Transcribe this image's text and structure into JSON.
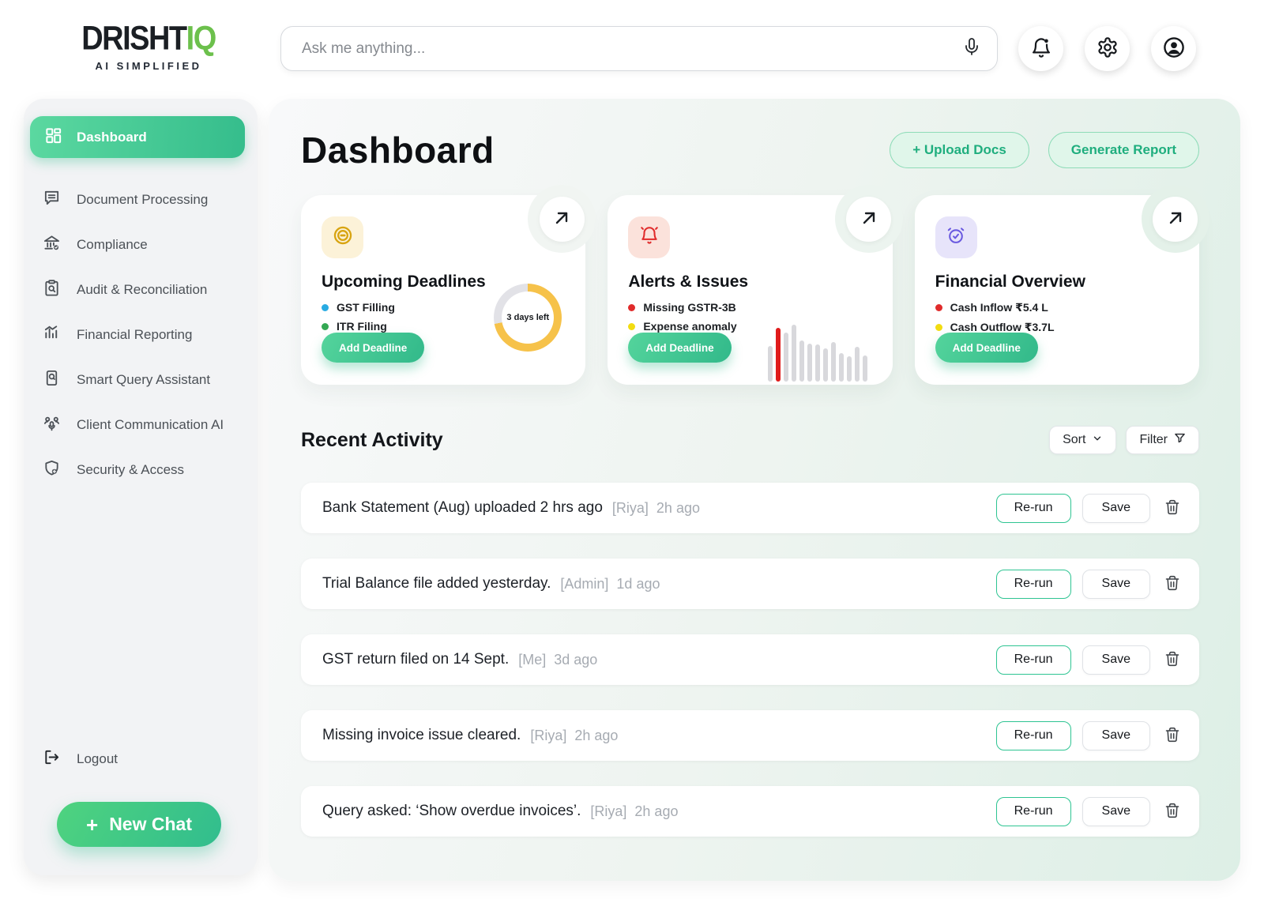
{
  "brand": {
    "name_primary": "DRISHT",
    "name_accent": "IQ",
    "tagline": "AI Simplified"
  },
  "topbar": {
    "search_placeholder": "Ask me anything..."
  },
  "sidebar": {
    "items": [
      {
        "label": "Dashboard",
        "active": true
      },
      {
        "label": "Document Processing"
      },
      {
        "label": "Compliance"
      },
      {
        "label": "Audit & Reconciliation"
      },
      {
        "label": "Financial Reporting"
      },
      {
        "label": "Smart Query Assistant"
      },
      {
        "label": "Client Communication AI"
      },
      {
        "label": "Security & Access"
      }
    ],
    "logout_label": "Logout",
    "new_chat_plus": "+",
    "new_chat_label": "New Chat"
  },
  "header": {
    "title": "Dashboard",
    "upload_button": "+ Upload Docs",
    "report_button": "Generate Report"
  },
  "cards": [
    {
      "title": "Upcoming Deadlines",
      "items": [
        {
          "label": "GST Filling",
          "dot": "#29abe2"
        },
        {
          "label": "ITR Filing",
          "dot": "#34a853"
        }
      ],
      "button": "Add Deadline",
      "donut": {
        "label": "3 days left",
        "percent": 72,
        "color": "#f6c24a",
        "track": "#e2e2e7"
      }
    },
    {
      "title": "Alerts & Issues",
      "items": [
        {
          "label": "Missing GSTR-3B",
          "dot": "#e02b2b"
        },
        {
          "label": "Expense anomaly",
          "dot": "#f2dc11"
        }
      ],
      "button": "Add Deadline",
      "bars": {
        "values": [
          45,
          68,
          62,
          72,
          52,
          48,
          47,
          42,
          50,
          36,
          32,
          44,
          33
        ],
        "highlight_index": 1,
        "bar_color": "#d8d8dc",
        "highlight_color": "#e01b1b"
      }
    },
    {
      "title": "Financial Overview",
      "items": [
        {
          "label": "Cash Inflow ₹5.4 L",
          "dot": "#e02b2b"
        },
        {
          "label": "Cash Outflow ₹3.7L",
          "dot": "#f2dc11"
        }
      ],
      "button": "Add Deadline"
    }
  ],
  "activity": {
    "title": "Recent Activity",
    "sort_label": "Sort",
    "filter_label": "Filter",
    "rerun_label": "Re-run",
    "save_label": "Save",
    "rows": [
      {
        "text": "Bank Statement (Aug) uploaded 2 hrs ago",
        "user": "[Riya]",
        "time": "2h ago"
      },
      {
        "text": "Trial Balance file added yesterday.",
        "user": "[Admin]",
        "time": "1d ago"
      },
      {
        "text": "GST return filed on 14 Sept.",
        "user": "[Me]",
        "time": "3d ago"
      },
      {
        "text": "Missing invoice issue cleared.",
        "user": "[Riya]",
        "time": "2h ago"
      },
      {
        "text": "Query asked: ‘Show overdue invoices’.",
        "user": "[Riya]",
        "time": "2h ago"
      }
    ]
  }
}
